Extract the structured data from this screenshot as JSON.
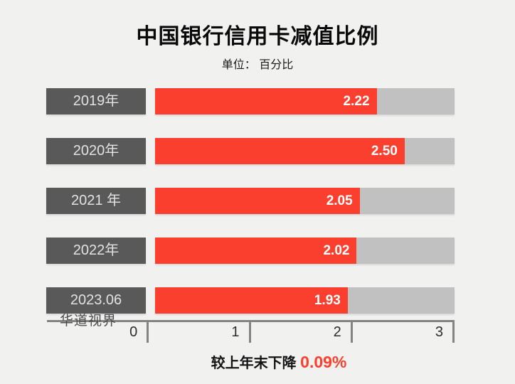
{
  "page": {
    "background": "#f1f1f0"
  },
  "header": {
    "title": "中国银行信用卡减值比例",
    "subtitle": "单位： 百分比"
  },
  "chart_data": {
    "type": "bar",
    "orientation": "horizontal",
    "title": "中国银行信用卡减值比例",
    "subtitle": "单位： 百分比",
    "categories": [
      "2019年",
      "2020年",
      "2021 年",
      "2022年",
      "2023.06"
    ],
    "values": [
      2.22,
      2.5,
      2.05,
      2.02,
      1.93
    ],
    "value_labels": [
      "2.22",
      "2.50",
      "2.05",
      "2.02",
      "1.93"
    ],
    "xlim": [
      0,
      3
    ],
    "x_ticks": [
      "0",
      "1",
      "2",
      "3"
    ],
    "grid": false,
    "legend": "none",
    "bar_color": "#fa3f2e",
    "track_color": "#c1c1c1",
    "category_box_color": "#595959",
    "value_text_color": "#ffffff"
  },
  "watermark": {
    "text": "华道视界"
  },
  "footer": {
    "prefix": "较上年末下降 ",
    "highlight": "0.09%",
    "highlight_color": "#fa3f2e"
  }
}
